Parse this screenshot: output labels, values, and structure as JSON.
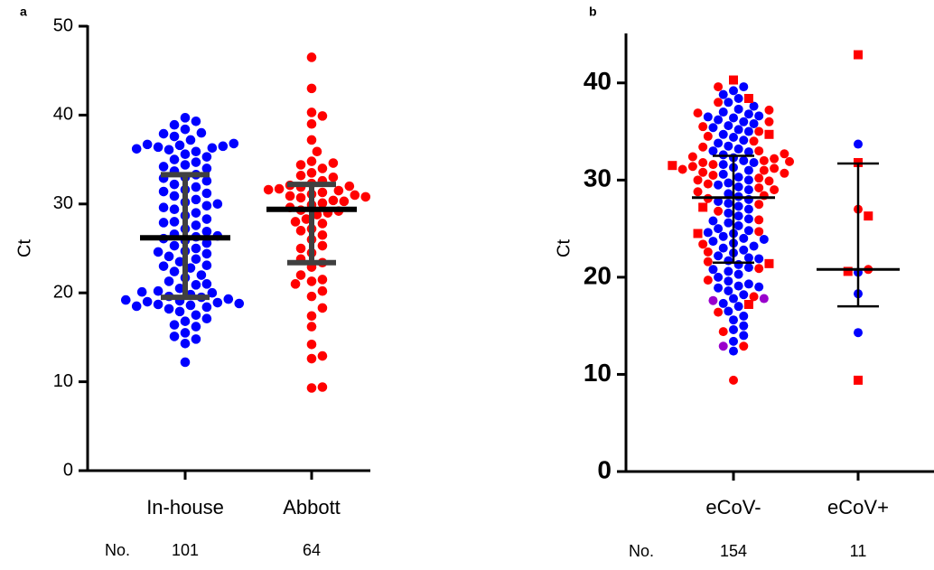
{
  "chart_data": [
    {
      "type": "swarm",
      "panel_label": "a",
      "ylabel": "Ct",
      "ylim": [
        0,
        50
      ],
      "yticks": [
        0,
        10,
        20,
        30,
        40,
        50
      ],
      "count_label": "No.",
      "summary_color": "#404040",
      "groups": [
        {
          "category": "In-house",
          "count": 101,
          "median": 26.2,
          "lower": 19.5,
          "upper": 33.3,
          "points": [
            {
              "color": "#0000ff",
              "marker": "circle",
              "values": [
                12.2,
                14.3,
                14.8,
                15.1,
                15.5,
                16.2,
                16.4,
                16.8,
                17.1,
                17.5,
                17.9,
                18.2,
                18.4,
                18.6,
                18.7,
                18.9,
                19.0,
                19.1,
                19.3,
                19.5,
                19.6,
                19.8,
                20.0,
                20.2,
                20.5,
                20.9,
                21.3,
                21.7,
                22.0,
                22.4,
                22.8,
                23.1,
                23.5,
                23.8,
                24.1,
                24.4,
                24.7,
                25.0,
                25.3,
                25.6,
                25.9,
                26.1,
                26.3,
                26.6,
                26.9,
                27.2,
                27.6,
                28.0,
                28.3,
                28.7,
                29.0,
                29.4,
                29.8,
                30.2,
                30.5,
                30.9,
                31.2,
                31.6,
                31.9,
                32.2,
                32.6,
                33.0,
                33.3,
                33.7,
                34.0,
                34.4,
                34.7,
                35.0,
                35.3,
                35.6,
                35.9,
                36.1,
                36.3,
                36.4,
                36.5,
                36.6,
                36.7,
                36.8,
                37.2,
                37.6,
                38.0,
                38.4,
                38.9,
                39.3,
                39.7,
                18.5,
                18.8,
                19.2,
                20.1,
                21.0,
                23.0,
                24.6,
                26.4,
                27.9,
                29.6,
                30.0,
                31.4,
                32.9,
                34.2,
                36.2,
                37.9
              ]
            }
          ]
        },
        {
          "category": "Abbott",
          "count": 64,
          "median": 29.4,
          "lower": 23.4,
          "upper": 32.2,
          "points": [
            {
              "color": "#ff0000",
              "marker": "circle",
              "values": [
                9.3,
                9.4,
                12.6,
                12.9,
                14.2,
                16.2,
                17.4,
                19.6,
                20.2,
                21.3,
                21.5,
                22.0,
                22.9,
                23.4,
                24.5,
                25.3,
                26.0,
                26.5,
                27.2,
                27.8,
                28.3,
                28.8,
                29.0,
                29.3,
                29.6,
                29.9,
                30.1,
                30.4,
                30.7,
                30.9,
                31.1,
                31.3,
                31.5,
                31.7,
                31.9,
                32.1,
                32.3,
                32.6,
                33.0,
                33.5,
                34.0,
                34.4,
                34.8,
                35.9,
                37.2,
                39.0,
                39.9,
                40.3,
                43.0,
                46.5,
                18.3,
                21.0,
                23.8,
                25.0,
                27.0,
                28.0,
                29.2,
                30.3,
                31.0,
                31.6,
                32.0,
                33.2,
                34.6,
                30.8
              ]
            }
          ]
        }
      ]
    },
    {
      "type": "swarm",
      "panel_label": "b",
      "ylabel": "Ct",
      "ylim": [
        0,
        45
      ],
      "yticks": [
        0,
        10,
        20,
        30,
        40
      ],
      "count_label": "No.",
      "summary_color": "#000000",
      "groups": [
        {
          "category": "eCoV-",
          "count": 154,
          "median": 28.2,
          "lower": 21.5,
          "upper": 32.5,
          "points": [
            {
              "color": "#0000ff",
              "marker": "circle",
              "values": [
                12.4,
                13.4,
                14.0,
                14.6,
                15.0,
                15.6,
                16.0,
                16.5,
                17.0,
                17.3,
                17.8,
                18.2,
                18.6,
                18.9,
                19.1,
                19.3,
                19.6,
                20.0,
                20.3,
                20.6,
                21.0,
                21.3,
                21.7,
                22.0,
                22.2,
                22.5,
                22.8,
                23.0,
                23.2,
                23.5,
                23.7,
                24.0,
                24.2,
                24.5,
                24.8,
                25.0,
                25.3,
                25.6,
                26.0,
                26.3,
                26.6,
                27.0,
                27.3,
                27.6,
                28.0,
                28.3,
                28.6,
                29.0,
                29.3,
                29.7,
                30.0,
                30.3,
                30.6,
                31.0,
                31.3,
                31.6,
                32.0,
                32.3,
                32.6,
                32.9,
                33.2,
                33.5,
                33.8,
                34.1,
                34.4,
                34.7,
                35.0,
                35.2,
                35.4,
                35.6,
                35.8,
                36.0,
                36.2,
                36.4,
                36.6,
                36.8,
                37.0,
                37.3,
                37.6,
                38.0,
                38.4,
                38.8,
                39.2,
                39.6,
                19.0,
                20.8,
                21.9,
                23.9,
                24.6,
                25.8,
                27.8,
                29.5,
                31.8,
                33.0,
                36.5
              ]
            },
            {
              "color": "#ff0000",
              "marker": "circle",
              "values": [
                9.4,
                12.9,
                14.4,
                16.4,
                18.0,
                19.7,
                20.9,
                21.6,
                22.6,
                23.4,
                24.7,
                25.9,
                26.8,
                27.5,
                28.1,
                28.4,
                28.8,
                29.2,
                29.6,
                29.9,
                30.2,
                30.5,
                30.8,
                31.0,
                31.2,
                31.4,
                31.6,
                31.8,
                32.0,
                32.2,
                32.4,
                32.7,
                33.0,
                33.4,
                34.0,
                34.5,
                35.0,
                35.5,
                36.0,
                36.9,
                37.2,
                38.0,
                39.6,
                30.0,
                30.7,
                31.1,
                31.9,
                29.0
              ]
            },
            {
              "color": "#ff0000",
              "marker": "square",
              "values": [
                40.3,
                38.4,
                34.7,
                31.5,
                27.2,
                21.4,
                24.5,
                17.2
              ]
            },
            {
              "color": "#9900cc",
              "marker": "circle",
              "values": [
                17.6,
                17.8,
                12.9
              ]
            }
          ]
        },
        {
          "category": "eCoV+",
          "count": 11,
          "median": 20.8,
          "lower": 17.0,
          "upper": 31.7,
          "points": [
            {
              "color": "#0000ff",
              "marker": "circle",
              "values": [
                33.7,
                18.3,
                14.3,
                20.5
              ]
            },
            {
              "color": "#ff0000",
              "marker": "circle",
              "values": [
                27.0,
                20.8
              ]
            },
            {
              "color": "#ff0000",
              "marker": "square",
              "values": [
                42.9,
                31.8,
                26.3,
                20.6,
                9.4
              ]
            }
          ]
        }
      ]
    }
  ]
}
